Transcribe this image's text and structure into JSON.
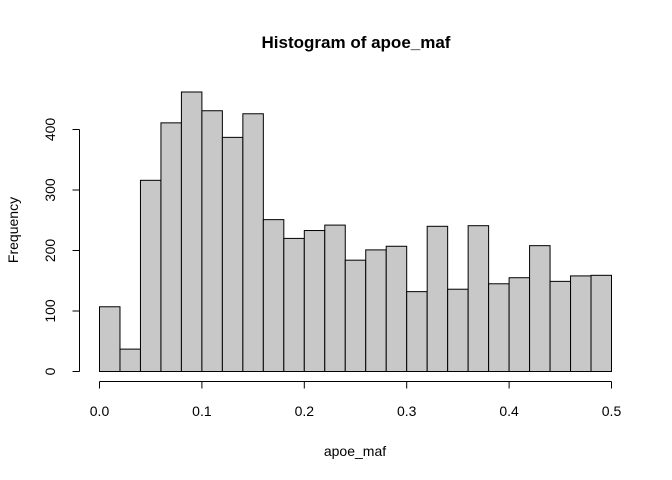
{
  "chart_data": {
    "type": "bar",
    "title": "Histogram of apoe_maf",
    "xlabel": "apoe_maf",
    "ylabel": "Frequency",
    "bin_width": 0.02,
    "bins_start": [
      0.0,
      0.02,
      0.04,
      0.06,
      0.08,
      0.1,
      0.12,
      0.14,
      0.16,
      0.18,
      0.2,
      0.22,
      0.24,
      0.26,
      0.28,
      0.3,
      0.32,
      0.34,
      0.36,
      0.38,
      0.4,
      0.42,
      0.44,
      0.46,
      0.48
    ],
    "values": [
      107,
      37,
      316,
      411,
      462,
      431,
      387,
      426,
      251,
      220,
      233,
      242,
      184,
      201,
      207,
      132,
      240,
      136,
      241,
      145,
      155,
      208,
      149,
      158,
      159
    ],
    "xlim": [
      0,
      0.5
    ],
    "ylim": [
      0,
      470
    ],
    "xticks": [
      0.0,
      0.1,
      0.2,
      0.3,
      0.4,
      0.5
    ],
    "xtick_labels": [
      "0.0",
      "0.1",
      "0.2",
      "0.3",
      "0.4",
      "0.5"
    ],
    "yticks": [
      0,
      100,
      200,
      300,
      400
    ],
    "ytick_labels": [
      "0",
      "100",
      "200",
      "300",
      "400"
    ],
    "bar_fill": "#c8c8c8",
    "bar_stroke": "#000000",
    "grid": false
  }
}
